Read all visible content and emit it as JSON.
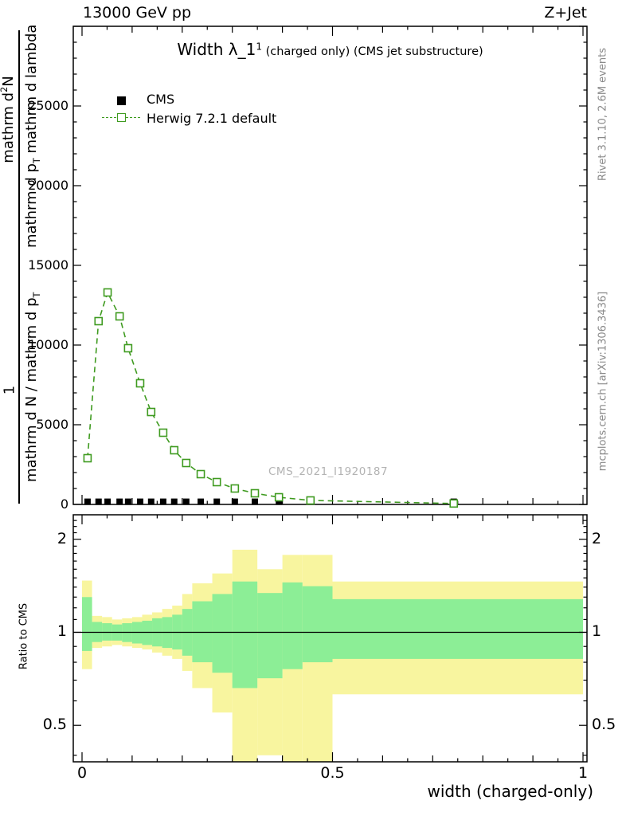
{
  "header": {
    "left_label": "13000 GeV pp",
    "right_label": "Z+Jet"
  },
  "title": {
    "main": "Width λ_1",
    "sup": "1",
    "suffix": " (charged only) (CMS jet substructure)"
  },
  "legend": {
    "cms_label": "CMS",
    "herwig_label": "Herwig 7.2.1 default"
  },
  "watermark": "CMS_2021_I1920187",
  "side_labels": {
    "top": "Rivet 3.1.10,  2.6M events",
    "bottom": "mcplots.cern.ch [arXiv:1306.3436]"
  },
  "axis_labels": {
    "xlabel": "width (charged-only)",
    "ratio_ylabel": "Ratio to CMS",
    "ylabel": {
      "upper_num_pre": "mathrm d",
      "upper_num_sup": "2",
      "upper_num_post": "N",
      "upper_den_pre": "mathrm d p",
      "upper_den_sub": "T",
      "upper_den_post": " mathrm d lambda",
      "lower_num": "1",
      "lower_den_pre": "mathrm d N / mathrm d p",
      "lower_den_sub": "T"
    }
  },
  "chart_data": {
    "type": "line",
    "title": "Width λ_1^1 (charged only) (CMS jet substructure)",
    "xlabel": "width (charged-only)",
    "x_axis": {
      "lim": [
        0,
        1
      ],
      "major_ticks": [
        0,
        0.5,
        1
      ],
      "tick_labels": [
        "0",
        "0.5",
        "1"
      ]
    },
    "main_panel": {
      "y_lim": [
        0,
        30000
      ],
      "y_major_ticks": [
        0,
        5000,
        10000,
        15000,
        20000,
        25000
      ],
      "y_tick_labels": [
        "0",
        "5000",
        "10000",
        "15000",
        "20000",
        "25000"
      ],
      "series": [
        {
          "name": "CMS",
          "marker": "filled-square",
          "color": "#000000",
          "x": [
            0.011,
            0.033,
            0.051,
            0.075,
            0.092,
            0.116,
            0.138,
            0.162,
            0.184,
            0.208,
            0.237,
            0.269,
            0.305,
            0.345,
            0.393,
            0.456,
            0.742
          ],
          "y": [
            170,
            170,
            170,
            170,
            170,
            170,
            170,
            170,
            170,
            170,
            170,
            170,
            170,
            170,
            170,
            170,
            170
          ]
        },
        {
          "name": "Herwig 7.2.1 default",
          "marker": "open-square",
          "line": "dashed",
          "color": "#3f9b20",
          "x": [
            0.011,
            0.033,
            0.051,
            0.075,
            0.092,
            0.116,
            0.138,
            0.162,
            0.184,
            0.208,
            0.237,
            0.269,
            0.305,
            0.345,
            0.393,
            0.456,
            0.742
          ],
          "y": [
            2900,
            11500,
            13300,
            11800,
            9800,
            7600,
            5800,
            4500,
            3400,
            2600,
            1900,
            1400,
            1000,
            700,
            450,
            250,
            60
          ]
        }
      ]
    },
    "ratio_panel": {
      "y_scale": "log",
      "y_lim": [
        0.381,
        2.4
      ],
      "y_major_ticks": [
        0.5,
        1,
        2
      ],
      "y_tick_labels": [
        "0.5",
        "1",
        "2"
      ],
      "y_minor_ticks": [
        0.4,
        0.6,
        0.7,
        0.8,
        0.9,
        1.1,
        1.2,
        1.3,
        1.4,
        1.5,
        1.6,
        1.7,
        1.8,
        1.9,
        2.1,
        2.2,
        2.3
      ],
      "reference_line": 1,
      "band_colors": {
        "outer": "#f8f59f",
        "inner": "#8cee96"
      },
      "bands": [
        {
          "x0": 0.0,
          "x1": 0.02,
          "outer": [
            0.76,
            1.47
          ],
          "inner": [
            0.87,
            1.3
          ]
        },
        {
          "x0": 0.02,
          "x1": 0.04,
          "outer": [
            0.89,
            1.13
          ],
          "inner": [
            0.93,
            1.08
          ]
        },
        {
          "x0": 0.04,
          "x1": 0.06,
          "outer": [
            0.9,
            1.12
          ],
          "inner": [
            0.94,
            1.07
          ]
        },
        {
          "x0": 0.06,
          "x1": 0.08,
          "outer": [
            0.91,
            1.1
          ],
          "inner": [
            0.94,
            1.06
          ]
        },
        {
          "x0": 0.08,
          "x1": 0.1,
          "outer": [
            0.9,
            1.11
          ],
          "inner": [
            0.93,
            1.07
          ]
        },
        {
          "x0": 0.1,
          "x1": 0.12,
          "outer": [
            0.89,
            1.12
          ],
          "inner": [
            0.92,
            1.08
          ]
        },
        {
          "x0": 0.12,
          "x1": 0.14,
          "outer": [
            0.88,
            1.14
          ],
          "inner": [
            0.91,
            1.09
          ]
        },
        {
          "x0": 0.14,
          "x1": 0.16,
          "outer": [
            0.86,
            1.16
          ],
          "inner": [
            0.9,
            1.11
          ]
        },
        {
          "x0": 0.16,
          "x1": 0.18,
          "outer": [
            0.84,
            1.19
          ],
          "inner": [
            0.89,
            1.12
          ]
        },
        {
          "x0": 0.18,
          "x1": 0.2,
          "outer": [
            0.82,
            1.22
          ],
          "inner": [
            0.88,
            1.14
          ]
        },
        {
          "x0": 0.2,
          "x1": 0.22,
          "outer": [
            0.75,
            1.33
          ],
          "inner": [
            0.84,
            1.19
          ]
        },
        {
          "x0": 0.22,
          "x1": 0.26,
          "outer": [
            0.66,
            1.44
          ],
          "inner": [
            0.8,
            1.26
          ]
        },
        {
          "x0": 0.26,
          "x1": 0.3,
          "outer": [
            0.55,
            1.55
          ],
          "inner": [
            0.74,
            1.33
          ]
        },
        {
          "x0": 0.3,
          "x1": 0.35,
          "outer": [
            0.38,
            1.85
          ],
          "inner": [
            0.66,
            1.46
          ]
        },
        {
          "x0": 0.35,
          "x1": 0.4,
          "outer": [
            0.4,
            1.6
          ],
          "inner": [
            0.71,
            1.34
          ]
        },
        {
          "x0": 0.4,
          "x1": 0.44,
          "outer": [
            0.38,
            1.78
          ],
          "inner": [
            0.76,
            1.45
          ]
        },
        {
          "x0": 0.44,
          "x1": 0.5,
          "outer": [
            0.38,
            1.78
          ],
          "inner": [
            0.8,
            1.41
          ]
        },
        {
          "x0": 0.5,
          "x1": 1.0,
          "outer": [
            0.63,
            1.46
          ],
          "inner": [
            0.82,
            1.28
          ]
        }
      ]
    }
  }
}
